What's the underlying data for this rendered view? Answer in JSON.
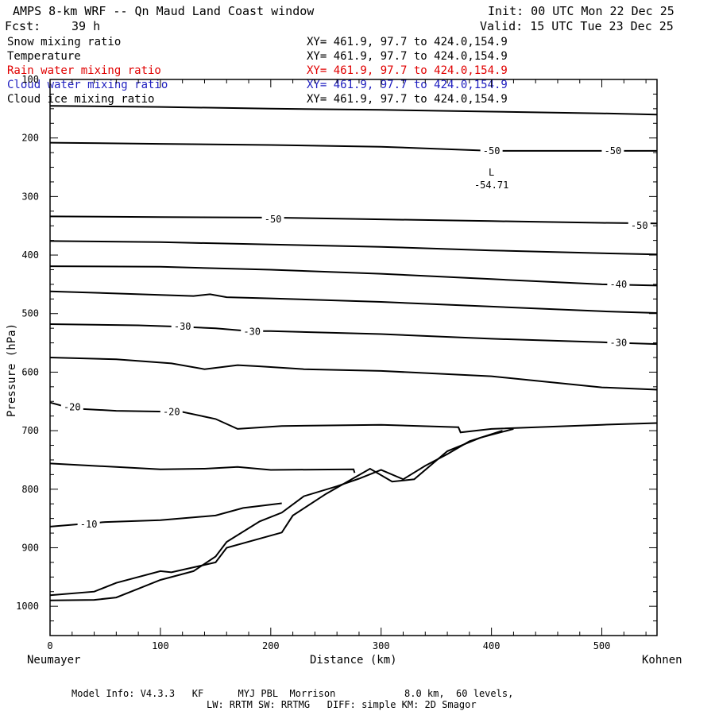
{
  "header": {
    "title": "AMPS 8-km WRF -- Qn Maud Land Coast window",
    "init": "Init: 00 UTC Mon 22 Dec 25",
    "fcst_label": "Fcst:",
    "fcst_value": "39 h",
    "valid": "Valid: 15 UTC Tue 23 Dec 25"
  },
  "fields": [
    {
      "name": "Snow mixing ratio",
      "xy": "XY= 461.9, 97.7 to 424.0,154.9",
      "color": "#000000"
    },
    {
      "name": "Temperature",
      "xy": "XY= 461.9, 97.7 to 424.0,154.9",
      "color": "#000000"
    },
    {
      "name": "Rain water mixing ratio",
      "xy": "XY= 461.9, 97.7 to 424.0,154.9",
      "color": "#e00000"
    },
    {
      "name": "Cloud water mixing ratio",
      "xy": "XY= 461.9, 97.7 to 424.0,154.9",
      "color": "#2020c0"
    },
    {
      "name": "Cloud ice mixing ratio",
      "xy": "XY= 461.9, 97.7 to 424.0,154.9",
      "color": "#000000"
    }
  ],
  "footer": {
    "model_info": "Model Info: V4.3.3   KF      MYJ PBL  Morrison            8.0 km,  60 levels,",
    "physics": "LW: RRTM SW: RRTMG   DIFF: simple KM: 2D Smagor"
  },
  "chart_data": {
    "type": "line",
    "xlabel": "Distance (km)",
    "ylabel": "Pressure (hPa)",
    "xlim": [
      0,
      550
    ],
    "ylim": [
      1050,
      100
    ],
    "x_ticks": [
      "0",
      "100",
      "200",
      "300",
      "400",
      "500"
    ],
    "y_ticks": [
      "100",
      "200",
      "300",
      "400",
      "500",
      "600",
      "700",
      "800",
      "900",
      "1000"
    ],
    "left_endpoint": "Neumayer",
    "right_endpoint": "Kohnen",
    "low_label": {
      "text": "L",
      "value": "-54.71",
      "x": 400,
      "p": 275
    },
    "contours": [
      {
        "points": [
          [
            0,
            145
          ],
          [
            100,
            147
          ],
          [
            200,
            150
          ],
          [
            300,
            152
          ],
          [
            400,
            155
          ],
          [
            500,
            158
          ],
          [
            550,
            160
          ]
        ]
      },
      {
        "points": [
          [
            0,
            208
          ],
          [
            100,
            210
          ],
          [
            200,
            212
          ],
          [
            300,
            215
          ],
          [
            400,
            222
          ],
          [
            470,
            222
          ],
          [
            550,
            222
          ]
        ],
        "labels": [
          {
            "text": "-50",
            "x": 400,
            "p": 222
          },
          {
            "text": "-50",
            "x": 510,
            "p": 222
          }
        ]
      },
      {
        "points": [
          [
            0,
            334
          ],
          [
            100,
            335
          ],
          [
            200,
            336
          ],
          [
            300,
            339
          ],
          [
            400,
            342
          ],
          [
            500,
            345
          ],
          [
            550,
            346
          ]
        ],
        "labels": [
          {
            "text": "-50",
            "x": 202,
            "p": 339
          },
          {
            "text": "-50",
            "x": 534,
            "p": 350
          }
        ]
      },
      {
        "points": [
          [
            0,
            376
          ],
          [
            100,
            378
          ],
          [
            200,
            382
          ],
          [
            300,
            386
          ],
          [
            400,
            392
          ],
          [
            500,
            397
          ],
          [
            550,
            399
          ]
        ]
      },
      {
        "points": [
          [
            0,
            419
          ],
          [
            100,
            420
          ],
          [
            200,
            425
          ],
          [
            300,
            432
          ],
          [
            400,
            441
          ],
          [
            500,
            450
          ],
          [
            550,
            452
          ]
        ],
        "labels": [
          {
            "text": "-40",
            "x": 515,
            "p": 450
          }
        ]
      },
      {
        "points": [
          [
            0,
            462
          ],
          [
            100,
            468
          ],
          [
            130,
            470
          ],
          [
            145,
            467
          ],
          [
            160,
            472
          ],
          [
            200,
            474
          ],
          [
            300,
            480
          ],
          [
            400,
            488
          ],
          [
            500,
            496
          ],
          [
            550,
            499
          ]
        ]
      },
      {
        "points": [
          [
            0,
            518
          ],
          [
            80,
            520
          ],
          [
            110,
            522
          ],
          [
            150,
            525
          ],
          [
            180,
            530
          ],
          [
            200,
            530
          ],
          [
            300,
            535
          ],
          [
            400,
            543
          ],
          [
            500,
            549
          ],
          [
            550,
            552
          ]
        ],
        "labels": [
          {
            "text": "-30",
            "x": 120,
            "p": 522
          },
          {
            "text": "-30",
            "x": 183,
            "p": 531
          },
          {
            "text": "-30",
            "x": 515,
            "p": 550
          }
        ]
      },
      {
        "points": [
          [
            0,
            575
          ],
          [
            60,
            578
          ],
          [
            110,
            585
          ],
          [
            140,
            595
          ],
          [
            170,
            588
          ],
          [
            190,
            590
          ],
          [
            230,
            595
          ],
          [
            300,
            598
          ],
          [
            400,
            607
          ],
          [
            500,
            626
          ],
          [
            550,
            630
          ]
        ]
      },
      {
        "points": [
          [
            0,
            652
          ],
          [
            20,
            662
          ],
          [
            60,
            666
          ],
          [
            120,
            668
          ],
          [
            150,
            680
          ],
          [
            170,
            697
          ],
          [
            210,
            692
          ],
          [
            300,
            690
          ],
          [
            370,
            694
          ],
          [
            372,
            703
          ],
          [
            400,
            697
          ],
          [
            500,
            690
          ],
          [
            550,
            687
          ]
        ],
        "labels": [
          {
            "text": "-20",
            "x": 20,
            "p": 660
          },
          {
            "text": "-20",
            "x": 110,
            "p": 668
          }
        ]
      },
      {
        "points": [
          [
            0,
            756
          ],
          [
            60,
            762
          ],
          [
            100,
            766
          ],
          [
            140,
            765
          ],
          [
            170,
            762
          ],
          [
            200,
            767
          ],
          [
            275,
            766
          ],
          [
            276,
            772
          ]
        ]
      },
      {
        "points": [
          [
            0,
            864
          ],
          [
            50,
            856
          ],
          [
            100,
            853
          ],
          [
            150,
            845
          ],
          [
            175,
            832
          ],
          [
            210,
            824
          ]
        ],
        "labels": [
          {
            "text": "-10",
            "x": 35,
            "p": 860
          }
        ]
      }
    ],
    "terrain": [
      {
        "points": [
          [
            0,
            990
          ],
          [
            40,
            989
          ],
          [
            60,
            985
          ],
          [
            80,
            970
          ],
          [
            100,
            955
          ],
          [
            120,
            945
          ],
          [
            130,
            940
          ],
          [
            150,
            915
          ],
          [
            160,
            890
          ],
          [
            190,
            855
          ],
          [
            210,
            840
          ],
          [
            230,
            812
          ],
          [
            260,
            795
          ],
          [
            280,
            782
          ],
          [
            300,
            767
          ],
          [
            320,
            783
          ],
          [
            340,
            760
          ],
          [
            360,
            740
          ],
          [
            380,
            718
          ],
          [
            410,
            700
          ]
        ]
      },
      {
        "points": [
          [
            0,
            981
          ],
          [
            40,
            975
          ],
          [
            60,
            960
          ],
          [
            100,
            940
          ],
          [
            110,
            942
          ],
          [
            150,
            925
          ],
          [
            160,
            900
          ],
          [
            210,
            874
          ],
          [
            220,
            845
          ],
          [
            250,
            808
          ],
          [
            290,
            765
          ],
          [
            310,
            787
          ],
          [
            330,
            783
          ],
          [
            360,
            735
          ],
          [
            390,
            712
          ],
          [
            420,
            697
          ]
        ]
      }
    ]
  }
}
